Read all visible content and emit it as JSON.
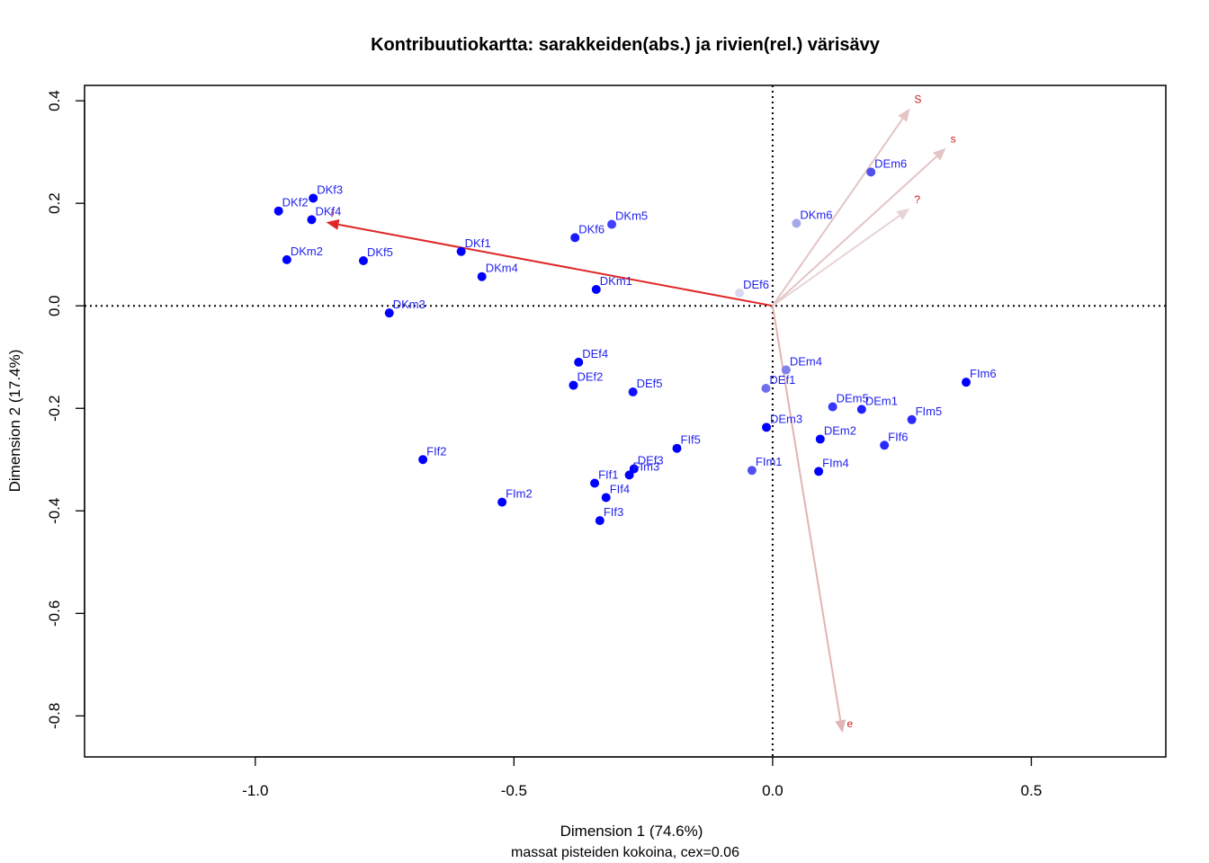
{
  "chart_data": {
    "type": "scatter",
    "title": "Kontribuutiokartta: sarakkeiden(abs.) ja rivien(rel.) värisävy",
    "xlabel": "Dimension 1 (74.6%)",
    "ylabel": "Dimension 2 (17.4%)",
    "subtitle": "massat pisteiden kokoina, cex=0.06",
    "xlim": [
      -1.33,
      0.76
    ],
    "ylim": [
      -0.88,
      0.43
    ],
    "xticks": [
      -1.0,
      -0.5,
      0.0,
      0.5
    ],
    "xtick_labels": [
      "-1.0",
      "-0.5",
      "0.0",
      "0.5"
    ],
    "yticks": [
      0.4,
      0.2,
      0.0,
      -0.2,
      -0.4,
      -0.6,
      -0.8
    ],
    "ytick_labels": [
      "0.4",
      "0.2",
      "0.0",
      "-0.2",
      "-0.4",
      "-0.6",
      "-0.8"
    ],
    "grid": false,
    "reference_lines": "dotted lines at x=0 and y=0",
    "row_points": [
      {
        "label": "DKf2",
        "x": -0.955,
        "y": 0.185,
        "color": "#0000ff"
      },
      {
        "label": "DKf3",
        "x": -0.888,
        "y": 0.21,
        "color": "#0000ff"
      },
      {
        "label": "DKf4",
        "x": -0.891,
        "y": 0.168,
        "color": "#0000ff"
      },
      {
        "label": "DKm2",
        "x": -0.939,
        "y": 0.09,
        "color": "#0000ff"
      },
      {
        "label": "DKf5",
        "x": -0.791,
        "y": 0.088,
        "color": "#0000ff"
      },
      {
        "label": "DKm3",
        "x": -0.741,
        "y": -0.014,
        "color": "#0000ff"
      },
      {
        "label": "DKf1",
        "x": -0.602,
        "y": 0.106,
        "color": "#0000ff"
      },
      {
        "label": "DKm4",
        "x": -0.562,
        "y": 0.057,
        "color": "#0000ff"
      },
      {
        "label": "DKf6",
        "x": -0.382,
        "y": 0.133,
        "color": "#1a1aff"
      },
      {
        "label": "DKm5",
        "x": -0.311,
        "y": 0.159,
        "color": "#4040ff"
      },
      {
        "label": "DKm1",
        "x": -0.341,
        "y": 0.032,
        "color": "#0000ff"
      },
      {
        "label": "DEf6",
        "x": -0.064,
        "y": 0.025,
        "color": "#d8d8ee"
      },
      {
        "label": "DKm6",
        "x": 0.046,
        "y": 0.161,
        "color": "#a8a8e8"
      },
      {
        "label": "DEm6",
        "x": 0.19,
        "y": 0.261,
        "color": "#5050ee"
      },
      {
        "label": "DEf4",
        "x": -0.375,
        "y": -0.11,
        "color": "#0000ff"
      },
      {
        "label": "DEf2",
        "x": -0.385,
        "y": -0.155,
        "color": "#0000ff"
      },
      {
        "label": "DEf5",
        "x": -0.27,
        "y": -0.168,
        "color": "#1010ff"
      },
      {
        "label": "DEm4",
        "x": 0.026,
        "y": -0.125,
        "color": "#8080ee"
      },
      {
        "label": "DEf1",
        "x": -0.013,
        "y": -0.161,
        "color": "#7070ee"
      },
      {
        "label": "DEm5",
        "x": 0.116,
        "y": -0.197,
        "color": "#3838ff"
      },
      {
        "label": "DEm1",
        "x": 0.172,
        "y": -0.202,
        "color": "#2020ff"
      },
      {
        "label": "DEm3",
        "x": -0.012,
        "y": -0.237,
        "color": "#0000ff"
      },
      {
        "label": "DEm2",
        "x": 0.092,
        "y": -0.26,
        "color": "#0000ff"
      },
      {
        "label": "FIm6",
        "x": 0.374,
        "y": -0.149,
        "color": "#0000ff"
      },
      {
        "label": "FIm5",
        "x": 0.269,
        "y": -0.222,
        "color": "#2a2aff"
      },
      {
        "label": "FIf6",
        "x": 0.216,
        "y": -0.272,
        "color": "#2a2aff"
      },
      {
        "label": "FIm4",
        "x": 0.089,
        "y": -0.323,
        "color": "#0000ff"
      },
      {
        "label": "FIm1",
        "x": -0.04,
        "y": -0.321,
        "color": "#5050ee"
      },
      {
        "label": "FIf2",
        "x": -0.676,
        "y": -0.3,
        "color": "#0000ff"
      },
      {
        "label": "FIf5",
        "x": -0.185,
        "y": -0.278,
        "color": "#0000ff"
      },
      {
        "label": "DEf3",
        "x": -0.268,
        "y": -0.318,
        "color": "#0000ff"
      },
      {
        "label": "FIm3",
        "x": -0.277,
        "y": -0.33,
        "color": "#0000ff"
      },
      {
        "label": "FIf1",
        "x": -0.344,
        "y": -0.346,
        "color": "#0000ff"
      },
      {
        "label": "FIf4",
        "x": -0.322,
        "y": -0.374,
        "color": "#0000ff"
      },
      {
        "label": "FIm2",
        "x": -0.523,
        "y": -0.383,
        "color": "#0000ff"
      },
      {
        "label": "FIf3",
        "x": -0.334,
        "y": -0.419,
        "color": "#0000ff"
      }
    ],
    "column_arrows": [
      {
        "label": "i",
        "x": -0.863,
        "y": 0.163,
        "color": "#e02626"
      },
      {
        "label": "S",
        "x": 0.265,
        "y": 0.385,
        "color": "#e4c4c4"
      },
      {
        "label": "s",
        "x": 0.335,
        "y": 0.308,
        "color": "#e4c4c4"
      },
      {
        "label": "?",
        "x": 0.265,
        "y": 0.19,
        "color": "#e8d4d4"
      },
      {
        "label": "e",
        "x": 0.135,
        "y": -0.833,
        "color": "#e0b4b4"
      }
    ]
  }
}
